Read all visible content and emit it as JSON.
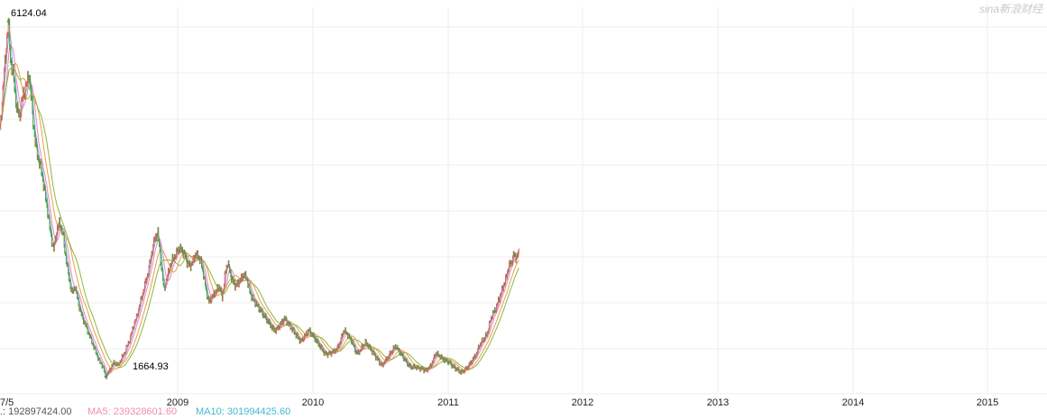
{
  "watermark": "sina新浪财经",
  "annotations": {
    "high": "6124.04",
    "low": "1664.93"
  },
  "x_labels": [
    "7/5",
    "2009",
    "2010",
    "2011",
    "2012",
    "2013",
    "2014",
    "2015"
  ],
  "volume_legend": {
    "vol": ".: 192897424.00",
    "ma5": "MA5: 239328601.60",
    "ma10": "MA10: 301994425.60"
  },
  "colors": {
    "candle_up": "#e06060",
    "candle_down": "#44a044",
    "ma5": "#7b9fd6",
    "ma10": "#e58ac0",
    "ma20": "#e8a040",
    "ma30": "#88b840",
    "ma5_text": "#f08cb8",
    "ma10_text": "#44b8d0"
  },
  "chart_data": {
    "type": "line",
    "title": "",
    "xlabel": "",
    "ylabel": "",
    "x_ticks": [
      "7/5",
      "2009",
      "2010",
      "2011",
      "2012",
      "2013",
      "2014",
      "2015"
    ],
    "ylim": [
      1450,
      6300
    ],
    "grid": true,
    "series": [
      {
        "values": [
          [
            2007.84,
            4750
          ],
          [
            2007.86,
            5300
          ],
          [
            2007.88,
            5800
          ],
          [
            2007.895,
            6124.04
          ],
          [
            2007.91,
            5600
          ],
          [
            2007.93,
            5400
          ],
          [
            2007.95,
            5000
          ],
          [
            2007.97,
            4950
          ],
          [
            2007.99,
            5200
          ],
          [
            2008.01,
            5300
          ],
          [
            2008.03,
            5480
          ],
          [
            2008.05,
            5000
          ],
          [
            2008.07,
            4600
          ],
          [
            2008.09,
            4400
          ],
          [
            2008.11,
            4250
          ],
          [
            2008.13,
            4000
          ],
          [
            2008.15,
            3750
          ],
          [
            2008.17,
            3450
          ],
          [
            2008.19,
            3250
          ],
          [
            2008.21,
            3500
          ],
          [
            2008.23,
            3600
          ],
          [
            2008.25,
            3450
          ],
          [
            2008.27,
            3150
          ],
          [
            2008.29,
            2900
          ],
          [
            2008.31,
            2700
          ],
          [
            2008.33,
            2800
          ],
          [
            2008.35,
            2600
          ],
          [
            2008.37,
            2450
          ],
          [
            2008.39,
            2350
          ],
          [
            2008.41,
            2250
          ],
          [
            2008.43,
            2150
          ],
          [
            2008.45,
            2050
          ],
          [
            2008.47,
            1950
          ],
          [
            2008.49,
            1850
          ],
          [
            2008.51,
            1800
          ],
          [
            2008.53,
            1664.93
          ],
          [
            2008.55,
            1720
          ],
          [
            2008.57,
            1800
          ],
          [
            2008.59,
            1850
          ],
          [
            2008.61,
            1800
          ],
          [
            2008.63,
            1880
          ],
          [
            2008.65,
            1950
          ],
          [
            2008.67,
            2050
          ],
          [
            2008.69,
            2150
          ],
          [
            2008.71,
            2300
          ],
          [
            2008.73,
            2400
          ],
          [
            2008.75,
            2550
          ],
          [
            2008.77,
            2700
          ],
          [
            2008.79,
            2850
          ],
          [
            2008.81,
            3000
          ],
          [
            2008.83,
            3220
          ],
          [
            2008.85,
            3400
          ],
          [
            2008.87,
            3478
          ],
          [
            2008.89,
            3100
          ],
          [
            2008.91,
            2750
          ],
          [
            2008.93,
            2900
          ],
          [
            2008.95,
            3050
          ],
          [
            2008.97,
            3150
          ],
          [
            2008.99,
            3200
          ],
          [
            2009.01,
            3280
          ],
          [
            2009.03,
            3250
          ],
          [
            2009.05,
            3200
          ],
          [
            2009.07,
            3100
          ],
          [
            2009.09,
            3050
          ],
          [
            2009.11,
            3100
          ],
          [
            2009.13,
            3200
          ],
          [
            2009.15,
            3180
          ],
          [
            2009.17,
            3120
          ],
          [
            2009.19,
            2950
          ],
          [
            2009.21,
            2750
          ],
          [
            2009.23,
            2600
          ],
          [
            2009.25,
            2650
          ],
          [
            2009.27,
            2700
          ],
          [
            2009.29,
            2750
          ],
          [
            2009.31,
            2800
          ],
          [
            2009.33,
            2650
          ],
          [
            2009.35,
            2950
          ],
          [
            2009.37,
            3100
          ],
          [
            2009.39,
            2950
          ],
          [
            2009.41,
            2850
          ],
          [
            2009.43,
            2800
          ],
          [
            2009.45,
            2850
          ],
          [
            2009.47,
            2900
          ],
          [
            2009.49,
            2950
          ],
          [
            2009.51,
            2900
          ],
          [
            2009.53,
            2750
          ],
          [
            2009.55,
            2650
          ],
          [
            2009.57,
            2600
          ],
          [
            2009.59,
            2550
          ],
          [
            2009.61,
            2500
          ],
          [
            2009.63,
            2450
          ],
          [
            2009.65,
            2400
          ],
          [
            2009.67,
            2350
          ],
          [
            2009.69,
            2300
          ],
          [
            2009.71,
            2250
          ],
          [
            2009.73,
            2250
          ],
          [
            2009.75,
            2300
          ],
          [
            2009.77,
            2350
          ],
          [
            2009.79,
            2400
          ],
          [
            2009.81,
            2350
          ],
          [
            2009.83,
            2300
          ],
          [
            2009.85,
            2250
          ],
          [
            2009.87,
            2200
          ],
          [
            2009.89,
            2150
          ],
          [
            2009.91,
            2100
          ],
          [
            2009.93,
            2150
          ],
          [
            2009.95,
            2200
          ],
          [
            2009.97,
            2250
          ],
          [
            2009.99,
            2200
          ],
          [
            2010.01,
            2150
          ],
          [
            2010.03,
            2100
          ],
          [
            2010.05,
            2050
          ],
          [
            2010.07,
            2000
          ],
          [
            2010.09,
            1950
          ],
          [
            2010.11,
            1950
          ],
          [
            2010.13,
            1960
          ],
          [
            2010.15,
            1980
          ],
          [
            2010.17,
            2000
          ],
          [
            2010.19,
            2050
          ],
          [
            2010.21,
            2150
          ],
          [
            2010.23,
            2250
          ],
          [
            2010.25,
            2200
          ],
          [
            2010.27,
            2150
          ],
          [
            2010.29,
            2100
          ],
          [
            2010.31,
            2000
          ],
          [
            2010.33,
            1950
          ],
          [
            2010.35,
            2000
          ],
          [
            2010.37,
            2050
          ],
          [
            2010.39,
            2100
          ],
          [
            2010.41,
            2050
          ],
          [
            2010.43,
            2000
          ],
          [
            2010.45,
            1950
          ],
          [
            2010.47,
            1900
          ],
          [
            2010.49,
            1850
          ],
          [
            2010.51,
            1800
          ],
          [
            2010.53,
            1850
          ],
          [
            2010.55,
            1900
          ],
          [
            2010.57,
            1950
          ],
          [
            2010.59,
            2000
          ],
          [
            2010.61,
            2050
          ],
          [
            2010.63,
            2000
          ],
          [
            2010.65,
            1950
          ],
          [
            2010.67,
            1900
          ],
          [
            2010.69,
            1850
          ],
          [
            2010.71,
            1800
          ],
          [
            2010.73,
            1780
          ],
          [
            2010.75,
            1790
          ],
          [
            2010.77,
            1780
          ],
          [
            2010.79,
            1770
          ],
          [
            2010.81,
            1760
          ],
          [
            2010.83,
            1740
          ],
          [
            2010.85,
            1760
          ],
          [
            2010.87,
            1800
          ],
          [
            2010.89,
            1880
          ],
          [
            2010.91,
            1960
          ],
          [
            2010.93,
            1930
          ],
          [
            2010.95,
            1900
          ],
          [
            2010.97,
            1870
          ],
          [
            2010.99,
            1860
          ],
          [
            2011.01,
            1840
          ],
          [
            2011.03,
            1800
          ],
          [
            2011.05,
            1770
          ],
          [
            2011.07,
            1750
          ],
          [
            2011.09,
            1720
          ],
          [
            2011.11,
            1730
          ],
          [
            2011.13,
            1760
          ],
          [
            2011.15,
            1800
          ],
          [
            2011.17,
            1850
          ],
          [
            2011.19,
            1900
          ],
          [
            2011.21,
            1950
          ],
          [
            2011.23,
            2050
          ],
          [
            2011.25,
            2100
          ],
          [
            2011.27,
            2150
          ],
          [
            2011.29,
            2200
          ],
          [
            2011.31,
            2350
          ],
          [
            2011.33,
            2450
          ],
          [
            2011.35,
            2500
          ],
          [
            2011.37,
            2600
          ],
          [
            2011.39,
            2700
          ],
          [
            2011.41,
            2800
          ],
          [
            2011.43,
            2900
          ],
          [
            2011.45,
            3050
          ],
          [
            2011.47,
            3100
          ],
          [
            2011.49,
            3200
          ],
          [
            2011.51,
            3150
          ],
          [
            2011.53,
            3250
          ]
        ]
      }
    ]
  }
}
